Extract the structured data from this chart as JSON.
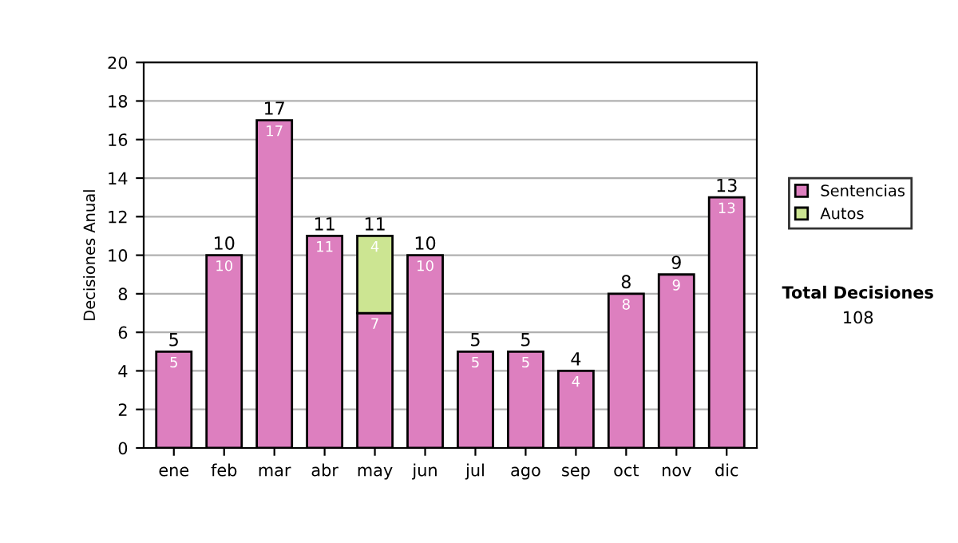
{
  "chart_data": {
    "type": "bar",
    "ylabel": "Decisiones Anual",
    "categories": [
      "ene",
      "feb",
      "mar",
      "abr",
      "may",
      "jun",
      "jul",
      "ago",
      "sep",
      "oct",
      "nov",
      "dic"
    ],
    "stacked": true,
    "series": [
      {
        "name": "Sentencias",
        "color": "#dd7fbf",
        "values": [
          5,
          10,
          17,
          11,
          7,
          10,
          5,
          5,
          4,
          8,
          9,
          13
        ]
      },
      {
        "name": "Autos",
        "color": "#cce592",
        "values": [
          null,
          null,
          null,
          null,
          4,
          null,
          null,
          null,
          null,
          null,
          null,
          null
        ]
      }
    ],
    "totals": [
      "5",
      "10",
      "17",
      "11",
      "11",
      "10",
      "5",
      "5",
      "4",
      "8",
      "9",
      "13"
    ],
    "data_labels": true,
    "ylim": [
      0,
      20
    ],
    "yticks": [
      0,
      2,
      4,
      6,
      8,
      10,
      12,
      14,
      16,
      18,
      20
    ],
    "grid": "y",
    "legend": "right",
    "annotations": [
      "Total Decisiones",
      "108"
    ]
  }
}
